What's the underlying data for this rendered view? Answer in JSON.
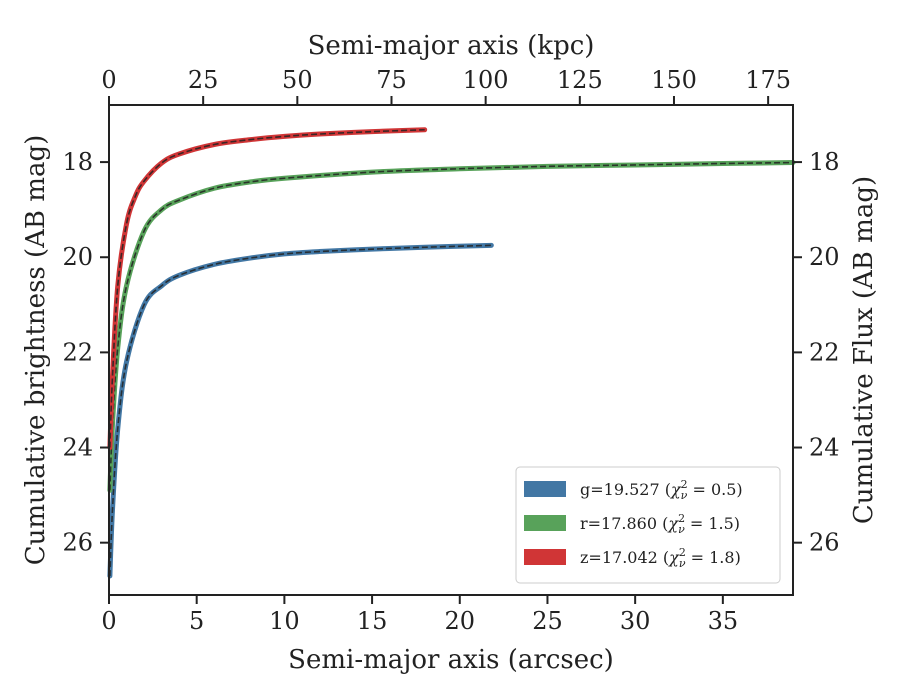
{
  "chart_data": {
    "type": "line",
    "xlabel": "Semi-major axis (arcsec)",
    "ylabel": "Cumulative brightness (AB mag)",
    "top_xlabel": "Semi-major axis (kpc)",
    "right_ylabel": "Cumulative Flux (AB mag)",
    "xlim": [
      0,
      39
    ],
    "top_xlim": [
      0,
      181.6
    ],
    "ylim": [
      27.1,
      16.8
    ],
    "y_inverted": true,
    "xticks": [
      0,
      5,
      10,
      15,
      20,
      25,
      30,
      35
    ],
    "xtick_labels": [
      "0",
      "5",
      "10",
      "15",
      "20",
      "25",
      "30",
      "35"
    ],
    "top_xticks": [
      0,
      25,
      50,
      75,
      100,
      125,
      150,
      175
    ],
    "top_xtick_labels": [
      "0",
      "25",
      "50",
      "75",
      "100",
      "125",
      "150",
      "175"
    ],
    "yticks": [
      18,
      20,
      22,
      24,
      26
    ],
    "ytick_labels": [
      "18",
      "20",
      "22",
      "24",
      "26"
    ],
    "grid": false,
    "legend_placement": "lower-right",
    "series": [
      {
        "name": "g=19.527 (χ²ν = 0.5)",
        "label_main": "g=19.527 (",
        "label_var": "χ",
        "label_sup": "2",
        "label_sub": "ν",
        "label_tail": " = 0.5)",
        "color": "#4277a4",
        "x": [
          0.05,
          0.2,
          0.5,
          1.0,
          2.0,
          3.0,
          4.0,
          6.0,
          8.0,
          10.0,
          12.0,
          15.0,
          18.0,
          21.8
        ],
        "y": [
          26.7,
          25.3,
          23.6,
          22.2,
          21.0,
          20.6,
          20.38,
          20.15,
          20.02,
          19.93,
          19.88,
          19.83,
          19.79,
          19.75
        ]
      },
      {
        "name": "r=17.860 (χ²ν = 1.5)",
        "label_main": "r=17.860 (",
        "label_var": "χ",
        "label_sup": "2",
        "label_sub": "ν",
        "label_tail": " = 1.5)",
        "color": "#58a25a",
        "x": [
          0.05,
          0.2,
          0.5,
          1.0,
          2.0,
          3.0,
          4.0,
          6.0,
          8.0,
          10.0,
          15.0,
          20.0,
          25.0,
          30.0,
          35.0,
          39.0
        ],
        "y": [
          24.9,
          23.5,
          21.9,
          20.6,
          19.45,
          19.0,
          18.8,
          18.55,
          18.42,
          18.34,
          18.21,
          18.14,
          18.09,
          18.06,
          18.03,
          18.01
        ]
      },
      {
        "name": "z=17.042 (χ²ν = 1.8)",
        "label_main": "z=17.042 (",
        "label_var": "χ",
        "label_sup": "2",
        "label_sub": "ν",
        "label_tail": " = 1.8)",
        "color": "#d03536",
        "x": [
          0.05,
          0.2,
          0.5,
          1.0,
          1.5,
          2.0,
          3.0,
          4.0,
          6.0,
          8.0,
          10.0,
          12.0,
          15.0,
          18.0
        ],
        "y": [
          24.0,
          22.5,
          20.6,
          19.3,
          18.72,
          18.4,
          18.02,
          17.83,
          17.63,
          17.53,
          17.46,
          17.41,
          17.36,
          17.32
        ]
      }
    ]
  }
}
